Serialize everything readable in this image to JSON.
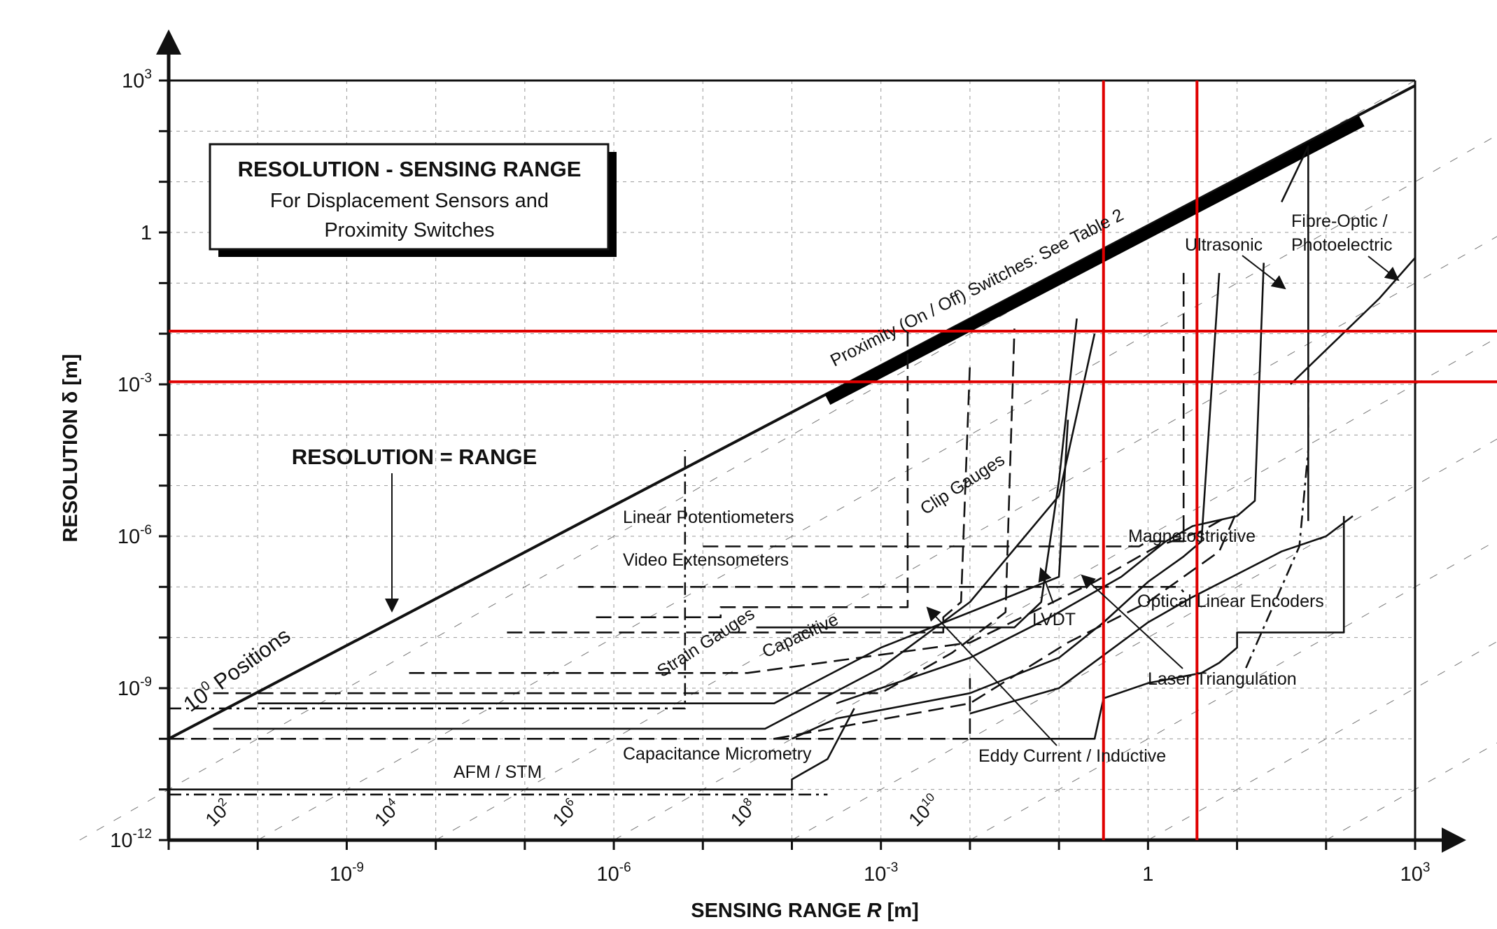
{
  "chart_data": {
    "type": "line",
    "title": "RESOLUTION - SENSING RANGE",
    "subtitle_line1": "For Displacement Sensors and",
    "subtitle_line2": "Proximity Switches",
    "xlabel_prefix": "SENSING RANGE ",
    "xlabel_var": "R",
    "xlabel_unit": " [m]",
    "ylabel": "RESOLUTION δ [m]",
    "x_scale": "log",
    "y_scale": "log",
    "xlim_exp": [
      -11,
      3
    ],
    "ylim_exp": [
      -12,
      3
    ],
    "grid": true,
    "x_ticks": [
      {
        "exp": -9,
        "base": "10",
        "sup": "-9"
      },
      {
        "exp": -6,
        "base": "10",
        "sup": "-6"
      },
      {
        "exp": -3,
        "base": "10",
        "sup": "-3"
      },
      {
        "exp": 0,
        "base": "1",
        "sup": ""
      },
      {
        "exp": 3,
        "base": "10",
        "sup": "3"
      }
    ],
    "y_ticks": [
      {
        "exp": 3,
        "base": "10",
        "sup": "3"
      },
      {
        "exp": 0,
        "base": "1",
        "sup": ""
      },
      {
        "exp": -3,
        "base": "10",
        "sup": "-3"
      },
      {
        "exp": -6,
        "base": "10",
        "sup": "-6"
      },
      {
        "exp": -9,
        "base": "10",
        "sup": "-9"
      },
      {
        "exp": -12,
        "base": "10",
        "sup": "-12"
      }
    ],
    "positions_diagonals": [
      {
        "base": "10",
        "sup": "2",
        "x_exp": -10.5
      },
      {
        "base": "10",
        "sup": "4",
        "x_exp": -8.6
      },
      {
        "base": "10",
        "sup": "6",
        "x_exp": -6.6
      },
      {
        "base": "10",
        "sup": "8",
        "x_exp": -4.6
      },
      {
        "base": "10",
        "sup": "10",
        "x_exp": -2.6
      }
    ],
    "reference_lines": {
      "red_horizontal_y_exp": [
        -1.95,
        -2.95
      ],
      "red_vertical_x_exp": [
        -0.5,
        0.55
      ]
    },
    "labels": {
      "resolution_range": "RESOLUTION = RANGE",
      "positions_base": "10",
      "positions_sup": "0",
      "positions_text": " Positions",
      "proximity": "Proximity (On / Off) Switches: See Table 2",
      "linear_pot": "Linear Potentiometers",
      "video_ext": "Video Extensometers",
      "clip_gauges": "Clip Gauges",
      "strain_gauges": "Strain Gauges",
      "capacitive": "Capacitive",
      "afm_stm": "AFM / STM",
      "cap_micrometry": "Capacitance Micrometry",
      "eddy_current": "Eddy Current / Inductive",
      "lvdt": "LVDT",
      "laser_tri": "Laser Triangulation",
      "optical_linear": "Optical Linear Encoders",
      "magnetostrictive": "Magnetostrictive",
      "ultrasonic": "Ultrasonic",
      "fibre_optic_1": "Fibre-Optic /",
      "fibre_optic_2": "Photoelectric"
    },
    "series": [
      {
        "key": "afm",
        "style": "solid",
        "points": [
          [
            -11,
            -11
          ],
          [
            -4,
            -11
          ],
          [
            -4,
            -10.8
          ],
          [
            -3.6,
            -10.4
          ],
          [
            -3.3,
            -9.4
          ]
        ]
      },
      {
        "key": "afm_top",
        "style": "dashdot",
        "points": [
          [
            -11,
            -11.1
          ],
          [
            -3.6,
            -11.1
          ]
        ]
      },
      {
        "key": "cap_micro_left",
        "style": "dashdot",
        "points": [
          [
            -11,
            -9.4
          ],
          [
            -5.2,
            -9.4
          ],
          [
            -5.2,
            -4.3
          ]
        ]
      },
      {
        "key": "cap_micro",
        "style": "dashed",
        "points": [
          [
            -11,
            -10
          ],
          [
            -2,
            -10
          ],
          [
            -2,
            -8.8
          ]
        ]
      },
      {
        "key": "strain",
        "style": "solid",
        "points": [
          [
            -10,
            -9.3
          ],
          [
            -4.2,
            -9.3
          ],
          [
            -3,
            -8.2
          ],
          [
            -1,
            -6.8
          ],
          [
            -0.9,
            -3.7
          ]
        ]
      },
      {
        "key": "capacitive",
        "style": "solid",
        "points": [
          [
            -10.5,
            -9.8
          ],
          [
            -4.3,
            -9.8
          ],
          [
            -3,
            -8.6
          ],
          [
            -2,
            -7.3
          ],
          [
            -1,
            -5.2
          ],
          [
            -0.6,
            -2
          ]
        ]
      },
      {
        "key": "clip_dashed",
        "style": "dashed",
        "points": [
          [
            -10.5,
            -9.1
          ],
          [
            -3,
            -9.1
          ],
          [
            -2.2,
            -8.3
          ],
          [
            -1.6,
            -7.5
          ],
          [
            -1.5,
            -1.9
          ]
        ]
      },
      {
        "key": "clip_range",
        "style": "solid",
        "points": [
          [
            -4.4,
            -7.8
          ],
          [
            -1.5,
            -7.8
          ],
          [
            -1.2,
            -7.3
          ],
          [
            -1,
            -4.9
          ],
          [
            -0.8,
            -1.7
          ]
        ]
      },
      {
        "key": "linear_pot_top",
        "style": "dashed",
        "points": [
          [
            -5,
            -6.2
          ],
          [
            -0.1,
            -6.2
          ],
          [
            0,
            -6.1
          ],
          [
            0.4,
            -6.1
          ],
          [
            0.4,
            -0.8
          ]
        ]
      },
      {
        "key": "linear_pot",
        "style": "dashed",
        "points": [
          [
            -6.4,
            -7
          ],
          [
            0.35,
            -7
          ],
          [
            0.4,
            -7.1
          ]
        ]
      },
      {
        "key": "video_ext",
        "style": "dashed",
        "points": [
          [
            -6.2,
            -7.6
          ],
          [
            -4.8,
            -7.6
          ],
          [
            -4.8,
            -7.4
          ],
          [
            -2.7,
            -7.4
          ],
          [
            -2.7,
            -1.9
          ]
        ]
      },
      {
        "key": "video_range",
        "style": "dashed",
        "points": [
          [
            -7.2,
            -7.9
          ],
          [
            -2.3,
            -7.9
          ],
          [
            -2.3,
            -7.6
          ],
          [
            -2.1,
            -7.3
          ],
          [
            -2,
            -2.6
          ]
        ]
      },
      {
        "key": "linear_pot_2",
        "style": "dashed",
        "points": [
          [
            -8.3,
            -8.7
          ],
          [
            -4.5,
            -8.7
          ],
          [
            -2,
            -8.1
          ],
          [
            -0.6,
            -6.9
          ],
          [
            0.1,
            -6.2
          ],
          [
            0.6,
            -5.9
          ],
          [
            0.9,
            -5.6
          ]
        ]
      },
      {
        "key": "lvdt",
        "style": "solid",
        "points": [
          [
            -4,
            -10
          ],
          [
            -3.5,
            -9.6
          ],
          [
            -2,
            -9.1
          ],
          [
            -1,
            -8.4
          ],
          [
            -0.5,
            -7.7
          ],
          [
            0,
            -6.9
          ],
          [
            0.4,
            -6.4
          ],
          [
            0.6,
            -6.1
          ],
          [
            0.8,
            -0.8
          ]
        ]
      },
      {
        "key": "laser_tri",
        "style": "dashed",
        "points": [
          [
            -4.2,
            -10
          ],
          [
            -2,
            -9.3
          ],
          [
            -0.9,
            -8.1
          ],
          [
            0,
            -7.3
          ],
          [
            0.8,
            -6.3
          ],
          [
            0.9,
            -5.9
          ],
          [
            1,
            -5.5
          ]
        ]
      },
      {
        "key": "eddy",
        "style": "solid",
        "points": [
          [
            -3.5,
            -9.3
          ],
          [
            -2,
            -8.4
          ],
          [
            -1.1,
            -7.6
          ],
          [
            -0.3,
            -6.8
          ],
          [
            0.2,
            -6.1
          ],
          [
            0.5,
            -5.8
          ],
          [
            1,
            -5.6
          ],
          [
            1.2,
            -5.3
          ],
          [
            1.3,
            -0.6
          ]
        ]
      },
      {
        "key": "magnetostrictive",
        "style": "solid",
        "points": [
          [
            -2,
            -9.5
          ],
          [
            -1,
            -9
          ],
          [
            0,
            -7.7
          ],
          [
            0.5,
            -7.2
          ],
          [
            1.5,
            -6.3
          ],
          [
            2,
            -6
          ],
          [
            2.3,
            -5.6
          ]
        ]
      },
      {
        "key": "optical_linear",
        "style": "solid",
        "points": [
          [
            -2,
            -10
          ],
          [
            -0.6,
            -10
          ],
          [
            -0.5,
            -9.2
          ],
          [
            0,
            -8.9
          ],
          [
            0.6,
            -8.7
          ],
          [
            0.8,
            -8.5
          ],
          [
            1,
            -8.2
          ],
          [
            1,
            -7.9
          ],
          [
            2.2,
            -7.9
          ],
          [
            2.2,
            -5.6
          ]
        ]
      },
      {
        "key": "eddy_right",
        "style": "dashdot",
        "points": [
          [
            1.1,
            -8.6
          ],
          [
            1.7,
            -6.2
          ],
          [
            1.8,
            -4.3
          ],
          [
            1.8,
            -2.6
          ]
        ]
      },
      {
        "key": "ultrasonic",
        "style": "solid",
        "points": [
          [
            1.8,
            -5.7
          ],
          [
            1.8,
            1.7
          ],
          [
            1.5,
            0.6
          ]
        ]
      },
      {
        "key": "fibre",
        "style": "solid",
        "points": [
          [
            1.6,
            -3
          ],
          [
            2.6,
            -1.3
          ],
          [
            2.9,
            -0.7
          ],
          [
            3,
            -0.5
          ],
          [
            3,
            2.9
          ]
        ]
      }
    ]
  }
}
